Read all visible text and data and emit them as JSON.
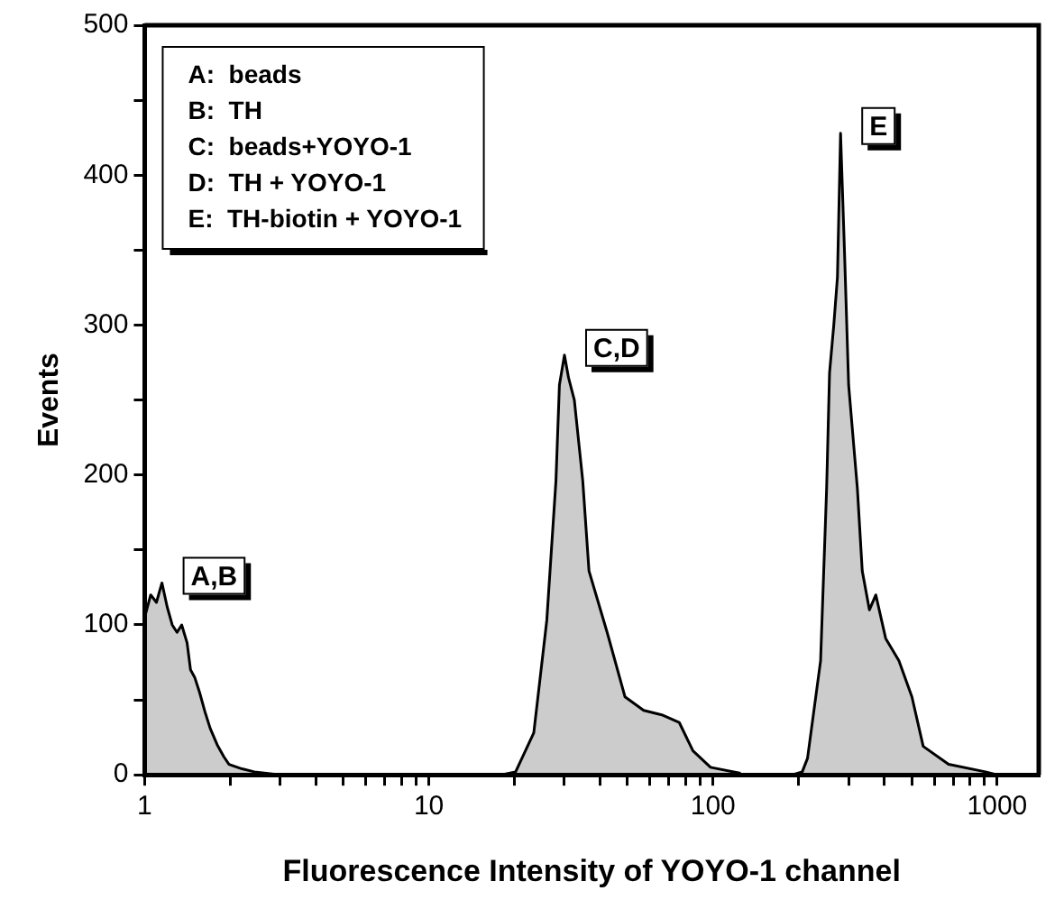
{
  "chart_data": {
    "type": "area",
    "xlabel": "Fluorescence Intensity of YOYO-1 channel",
    "ylabel": "Events",
    "annotations": [
      "A:  beads",
      "B:  TH",
      "C:  beads+YOYO-1",
      "D:  TH + YOYO-1",
      "E:  TH-biotin + YOYO-1"
    ],
    "log": "x",
    "grid": false,
    "legend": false,
    "marker": "none",
    "xlim": [
      1,
      1400
    ],
    "ylim": [
      0,
      500
    ],
    "xticks": [
      1,
      {
        "value": 2,
        "label": null
      },
      {
        "value": 3,
        "label": null
      },
      {
        "value": 4,
        "label": null
      },
      {
        "value": 5,
        "label": null
      },
      {
        "value": 6,
        "label": null
      },
      {
        "value": 7,
        "label": null
      },
      {
        "value": 8,
        "label": null
      },
      {
        "value": 9,
        "label": null
      },
      10,
      {
        "value": 20,
        "label": null
      },
      {
        "value": 30,
        "label": null
      },
      {
        "value": 40,
        "label": null
      },
      {
        "value": 50,
        "label": null
      },
      {
        "value": 60,
        "label": null
      },
      {
        "value": 70,
        "label": null
      },
      {
        "value": 80,
        "label": null
      },
      {
        "value": 90,
        "label": null
      },
      100,
      {
        "value": 200,
        "label": null
      },
      {
        "value": 300,
        "label": null
      },
      {
        "value": 400,
        "label": null
      },
      {
        "value": 500,
        "label": null
      },
      {
        "value": 600,
        "label": null
      },
      {
        "value": 700,
        "label": null
      },
      {
        "value": 800,
        "label": null
      },
      {
        "value": 900,
        "label": null
      },
      1000
    ],
    "yticks": [
      0,
      {
        "value": 50,
        "label": null
      },
      100,
      {
        "value": 150,
        "label": null
      },
      200,
      {
        "value": 250,
        "label": null
      },
      300,
      {
        "value": 350,
        "label": null
      },
      400,
      {
        "value": 450,
        "label": null
      },
      500
    ],
    "series": [
      {
        "name": "A,B",
        "color": "#000000",
        "x": [
          1,
          1.05,
          1.1,
          1.15,
          1.2,
          1.25,
          1.3,
          1.35,
          1.41,
          1.45,
          1.5,
          1.56,
          1.63,
          1.7,
          1.8,
          1.9,
          1.98,
          2.2,
          2.43,
          3
        ],
        "values": [
          105,
          120,
          115,
          128,
          112,
          100,
          95,
          100,
          88,
          70,
          65,
          55,
          42,
          31,
          20,
          12,
          7,
          4,
          2,
          0
        ]
      },
      {
        "name": "C,D",
        "color": "#000000",
        "x": [
          18,
          20.2,
          23.4,
          26,
          28,
          28.8,
          30,
          31,
          32.5,
          34.8,
          36.6,
          42.4,
          49,
          57,
          66,
          76,
          85,
          98,
          125
        ],
        "values": [
          0,
          2,
          28,
          103,
          196,
          260,
          280,
          265,
          250,
          196,
          136,
          95,
          52,
          43,
          40,
          35,
          16,
          5,
          1
        ]
      },
      {
        "name": "E",
        "color": "#000000",
        "x": [
          190,
          206,
          215,
          239,
          251,
          257,
          266,
          274,
          281,
          290,
          300,
          322,
          335,
          355,
          374,
          405,
          451,
          501,
          549,
          674,
          908,
          1000
        ],
        "values": [
          0,
          2,
          11,
          76,
          191,
          268,
          300,
          332,
          428,
          350,
          260,
          191,
          136,
          110,
          120,
          91,
          76,
          52,
          19,
          7,
          2,
          0
        ]
      }
    ]
  }
}
